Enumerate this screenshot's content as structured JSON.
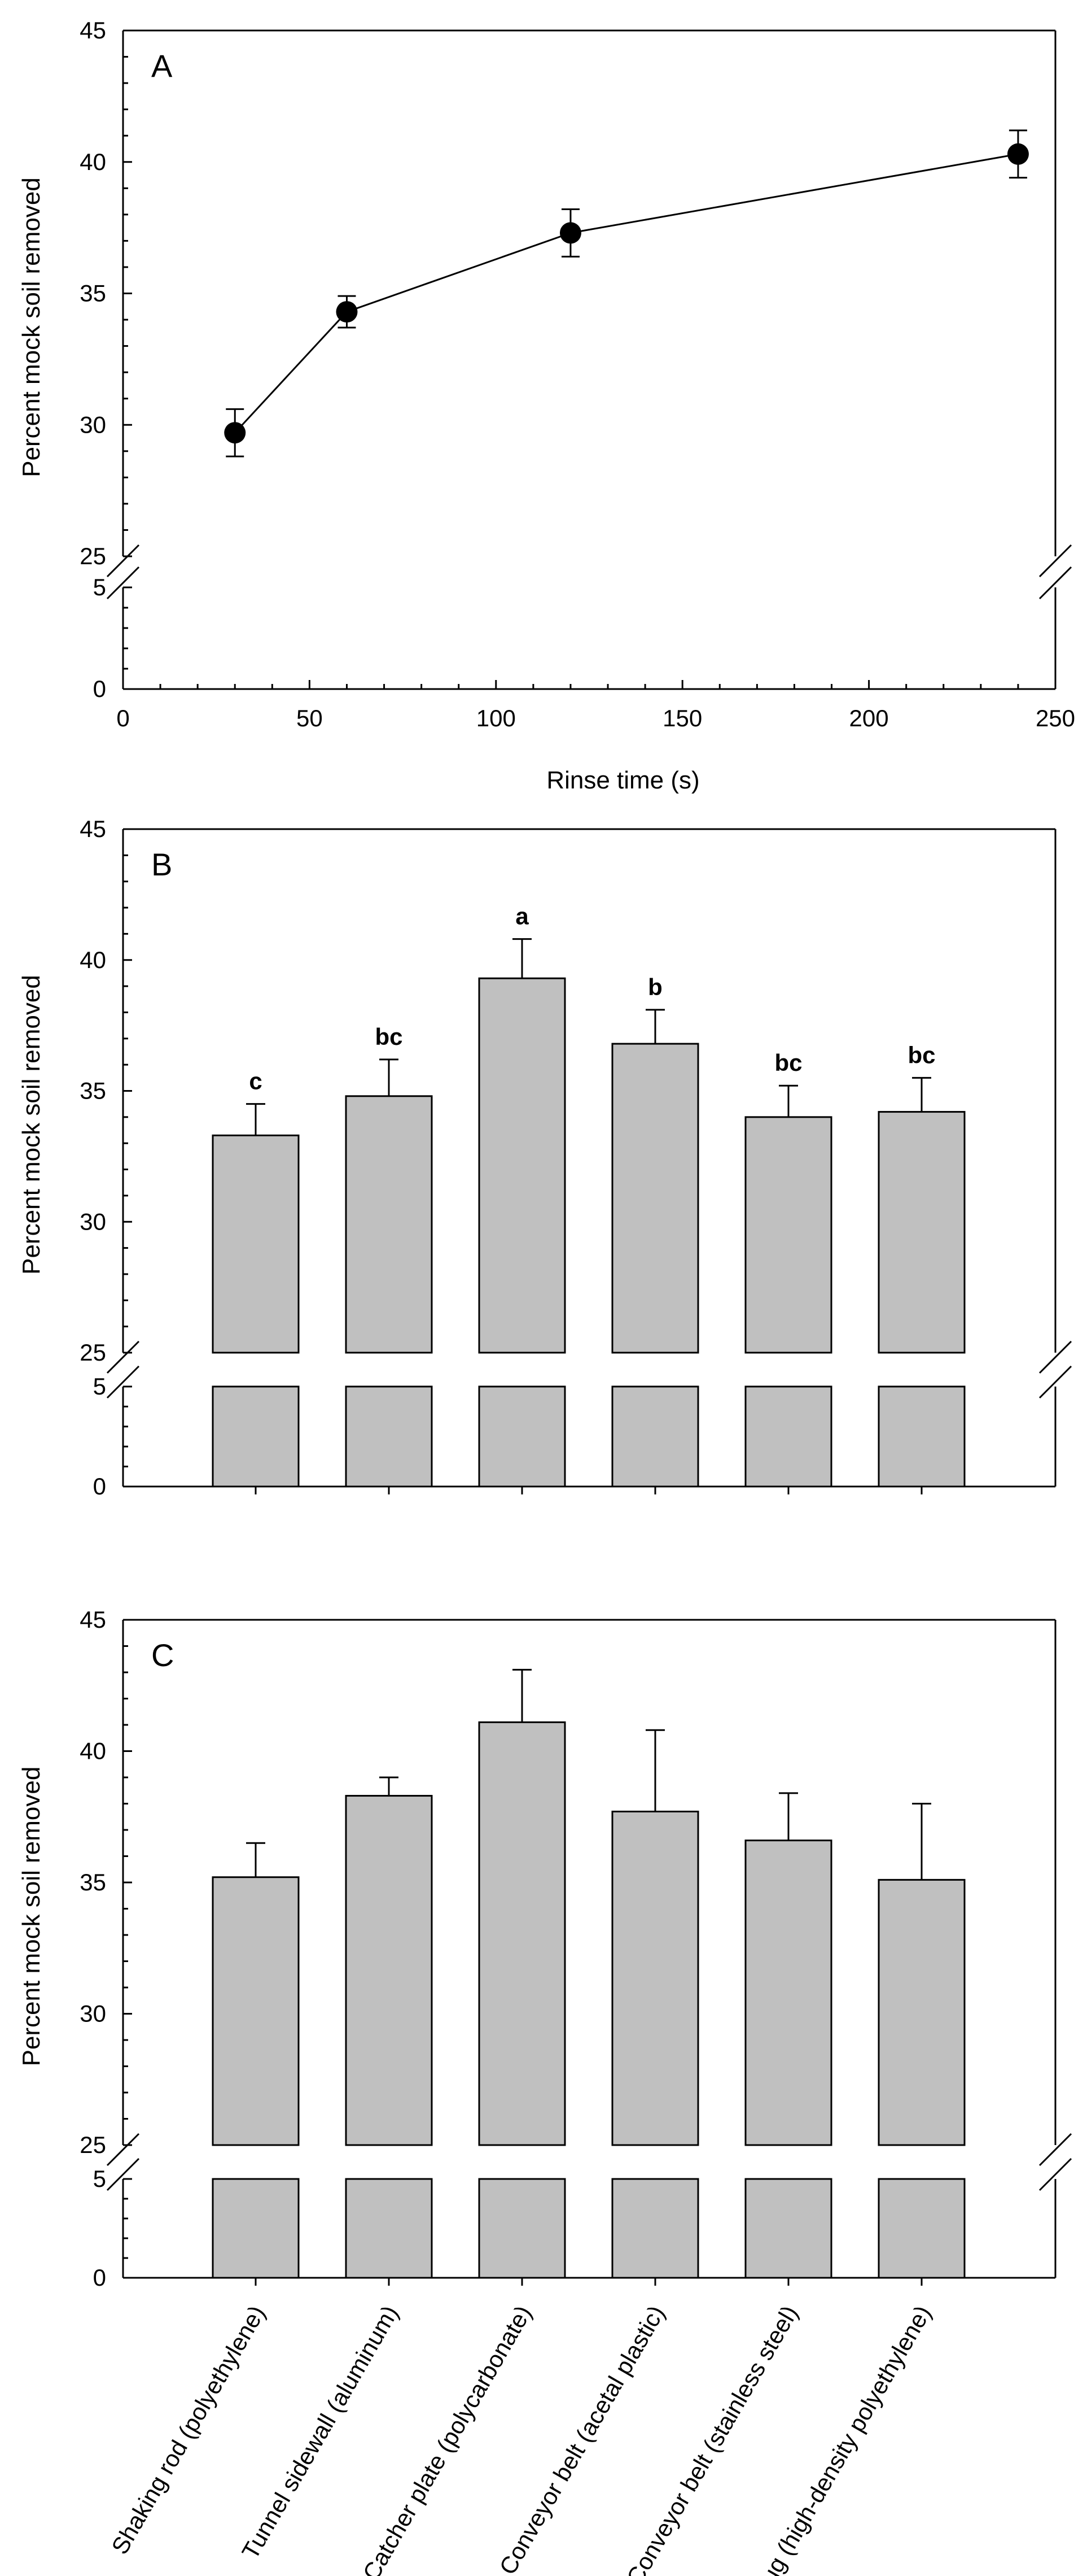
{
  "chart_data": [
    {
      "panel": "A",
      "type": "line",
      "xlabel": "Rinse time (s)",
      "ylabel": "Percent mock soil removed",
      "xlim": [
        0,
        250
      ],
      "xticks": [
        0,
        50,
        100,
        150,
        200,
        250
      ],
      "ylim_upper": [
        25,
        45
      ],
      "ylim_lower": [
        0,
        5
      ],
      "yticks_upper": [
        25,
        30,
        35,
        40,
        45
      ],
      "yticks_lower": [
        0,
        5
      ],
      "points": [
        {
          "x": 30,
          "y": 29.7,
          "err": 0.9
        },
        {
          "x": 60,
          "y": 34.3,
          "err": 0.6
        },
        {
          "x": 120,
          "y": 37.3,
          "err": 0.9
        },
        {
          "x": 240,
          "y": 40.3,
          "err": 0.9
        }
      ]
    },
    {
      "panel": "B",
      "type": "bar",
      "xlabel": "",
      "ylabel": "Percent mock soil removed",
      "ylim_upper": [
        25,
        45
      ],
      "ylim_lower": [
        0,
        5
      ],
      "yticks_upper": [
        25,
        30,
        35,
        40,
        45
      ],
      "yticks_lower": [
        0,
        5
      ],
      "categories": [
        "Shaking rod (polyethylene)",
        "Tunnel sidewall (aluminum)",
        "Catcher plate (polycarbonate)",
        "Conveyor belt (acetal plastic)",
        "Conveyor belt (stainless steel)",
        "Lug (high-density polyethylene)"
      ],
      "values": [
        33.3,
        34.8,
        39.3,
        36.8,
        34.0,
        34.2
      ],
      "errors": [
        1.2,
        1.4,
        1.5,
        1.3,
        1.2,
        1.3
      ],
      "annotations": [
        "c",
        "bc",
        "a",
        "b",
        "bc",
        "bc"
      ]
    },
    {
      "panel": "C",
      "type": "bar",
      "xlabel": "",
      "ylabel": "Percent mock soil removed",
      "ylim_upper": [
        25,
        45
      ],
      "ylim_lower": [
        0,
        5
      ],
      "yticks_upper": [
        25,
        30,
        35,
        40,
        45
      ],
      "yticks_lower": [
        0,
        5
      ],
      "categories": [
        "Shaking rod (polyethylene)",
        "Tunnel sidewall (aluminum)",
        "Catcher plate (polycarbonate)",
        "Conveyor belt (acetal plastic)",
        "Conveyor belt (stainless steel)",
        "Lug (high-density polyethylene)"
      ],
      "values": [
        35.2,
        38.3,
        41.1,
        37.7,
        36.6,
        35.1
      ],
      "errors": [
        1.3,
        0.7,
        2.0,
        3.1,
        1.8,
        2.9
      ]
    }
  ]
}
